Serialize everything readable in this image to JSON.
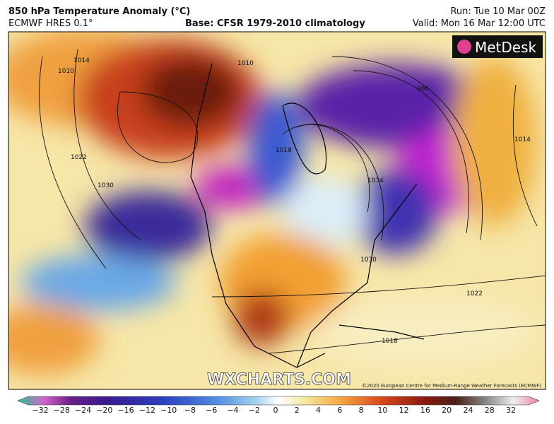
{
  "header": {
    "title": "850 hPa Temperature Anomaly (°C)",
    "model": "ECMWF HRES 0.1°",
    "base": "Base: CFSR 1979-2010 climatology",
    "run": "Run: Tue 10 Mar 00Z",
    "valid": "Valid: Mon 16 Mar 12:00 UTC"
  },
  "map": {
    "logo": "MetDesk",
    "watermark": "WXCHARTS.COM",
    "copyright": "©2020 European Centre for Medium-Range Weather Forecasts (ECMWF)",
    "isobar_labels": [
      "1010",
      "1014",
      "1022",
      "1030",
      "1010",
      "1018",
      "1034",
      "986",
      "1014",
      "1022",
      "1018",
      "1030"
    ]
  },
  "colorbar": {
    "ticks": [
      "−32",
      "−28",
      "−24",
      "−20",
      "−16",
      "−12",
      "−10",
      "−8",
      "−6",
      "−4",
      "−2",
      "0",
      "2",
      "4",
      "6",
      "8",
      "10",
      "12",
      "16",
      "20",
      "24",
      "28",
      "32"
    ]
  }
}
